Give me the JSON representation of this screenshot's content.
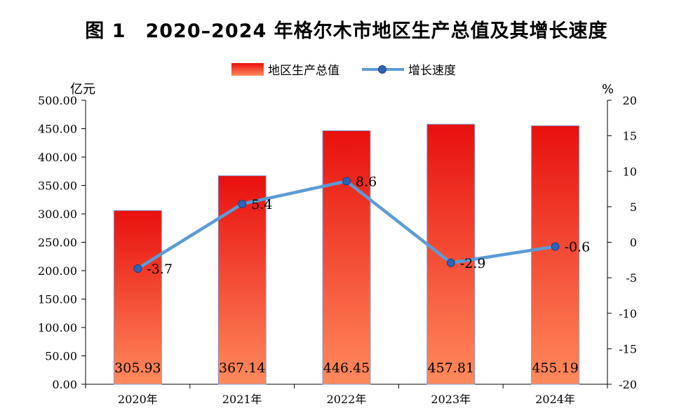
{
  "chart_data": {
    "type": "bar",
    "title": "图 1　2020–2024 年格尔木市地区生产总值及其增长速度",
    "categories": [
      "2020年",
      "2021年",
      "2022年",
      "2023年",
      "2024年"
    ],
    "series": [
      {
        "name": "地区生产总值",
        "type": "bar",
        "axis": "left",
        "values": [
          305.93,
          367.14,
          446.45,
          457.81,
          455.19
        ],
        "labels": [
          "305.93",
          "367.14",
          "446.45",
          "457.81",
          "455.19"
        ]
      },
      {
        "name": "增长速度",
        "type": "line",
        "axis": "right",
        "values": [
          -3.7,
          5.4,
          8.6,
          -2.9,
          -0.6
        ],
        "labels": [
          "-3.7",
          "5.4",
          "8.6",
          "-2.9",
          "-0.6"
        ]
      }
    ],
    "y_left": {
      "unit": "亿元",
      "range": [
        0,
        500
      ],
      "ticks": [
        "0.00",
        "50.00",
        "100.00",
        "150.00",
        "200.00",
        "250.00",
        "300.00",
        "350.00",
        "400.00",
        "450.00",
        "500.00"
      ]
    },
    "y_right": {
      "unit": "%",
      "range": [
        -20,
        20
      ],
      "ticks": [
        "-20",
        "-15",
        "-10",
        "-5",
        "0",
        "5",
        "10",
        "15",
        "20"
      ]
    },
    "legend_position": "top-center",
    "grid": false,
    "colors": {
      "bar_top": "#e8100e",
      "bar_bottom": "#ff8a5c",
      "line": "#5b9bd5",
      "marker": "#2e63b8"
    }
  }
}
